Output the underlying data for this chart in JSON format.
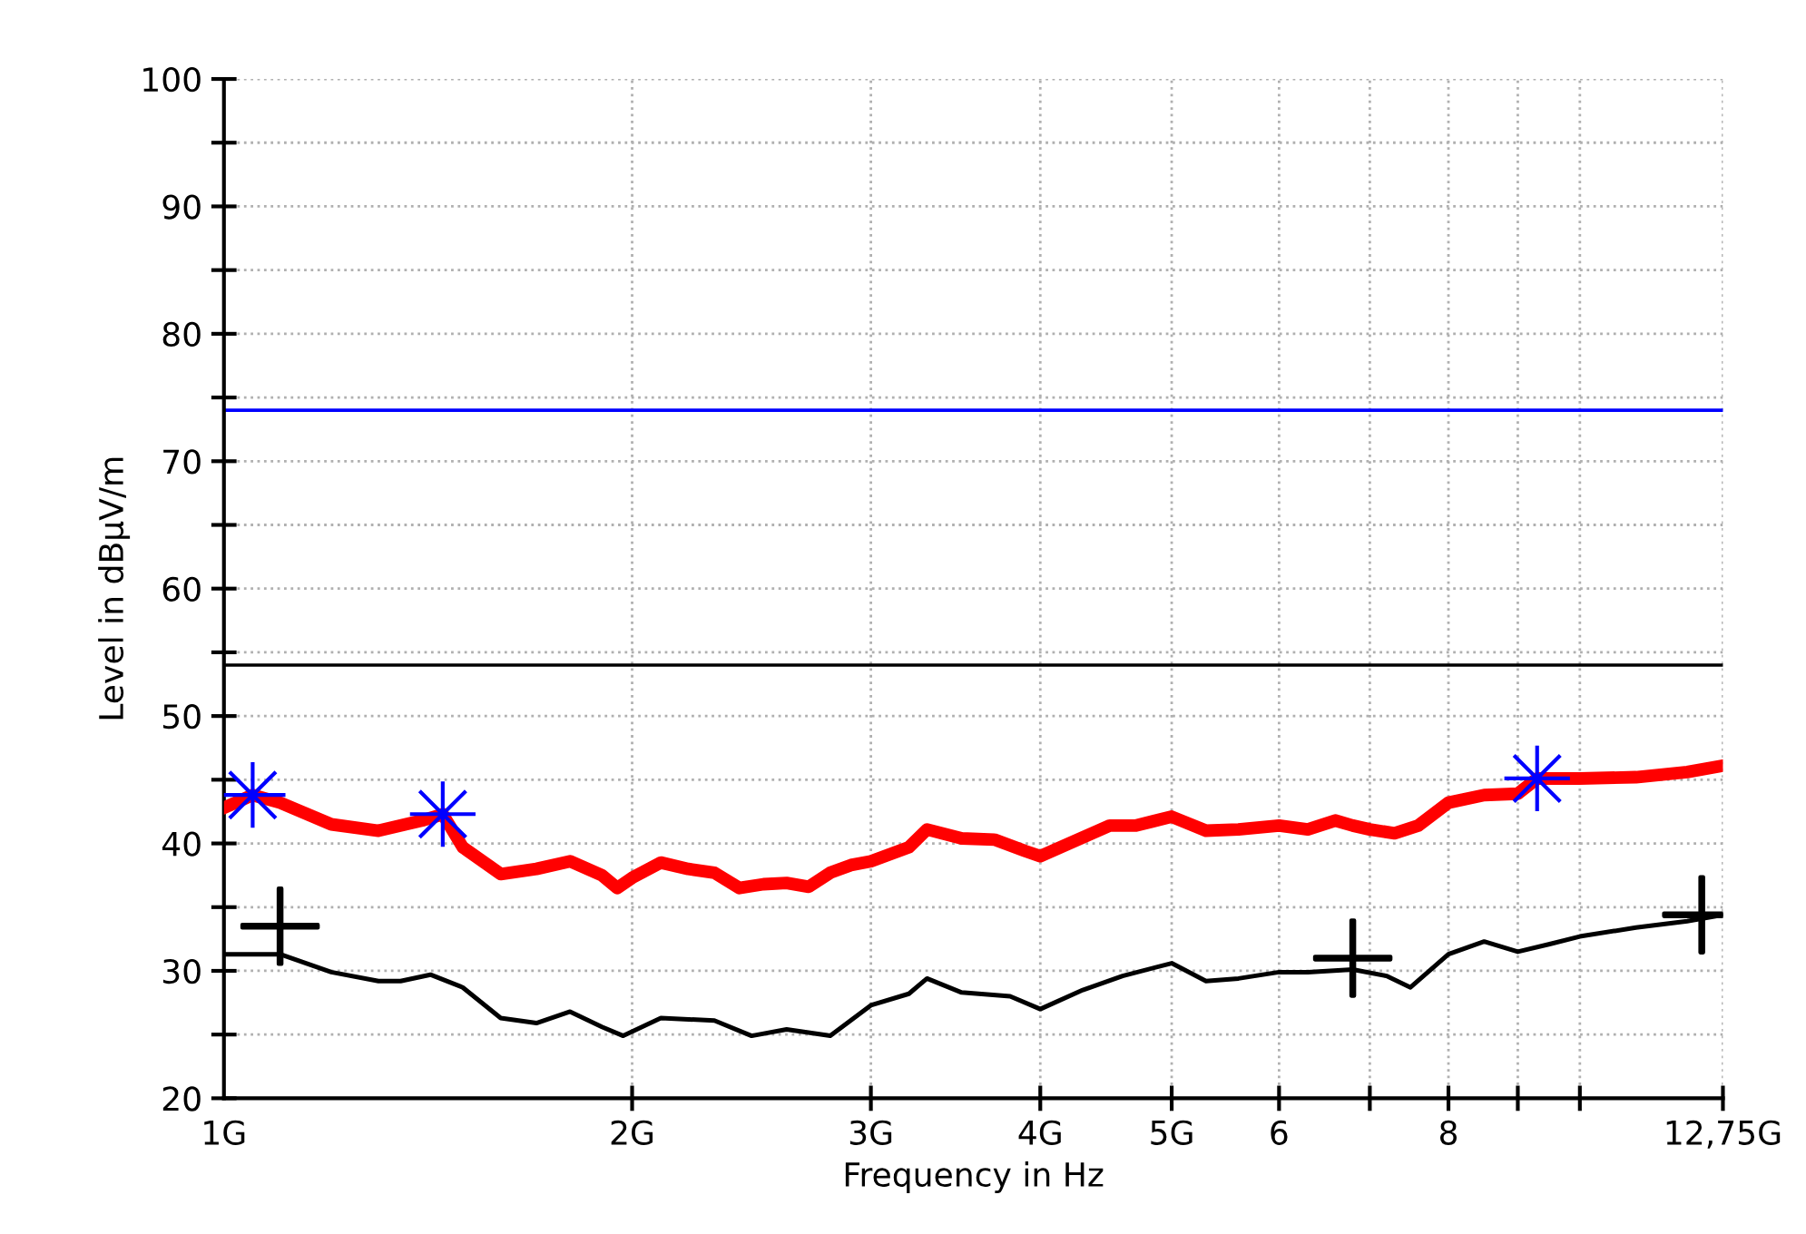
{
  "chart_data": {
    "type": "line",
    "xlabel": "Frequency in Hz",
    "ylabel": "Level in dBµV/m",
    "log": "x",
    "grid": true,
    "line_style": "solid",
    "xlim": [
      1,
      12.75
    ],
    "xticks": [
      {
        "value": 1,
        "label": "1G"
      },
      {
        "value": 2,
        "label": "2G"
      },
      {
        "value": 3,
        "label": "3G"
      },
      {
        "value": 4,
        "label": "4G"
      },
      {
        "value": 5,
        "label": "5G"
      },
      6,
      {
        "value": 7,
        "label": null
      },
      8,
      {
        "value": 9,
        "label": null
      },
      {
        "value": 10,
        "label": null
      },
      {
        "value": 12.75,
        "label": "12,75G"
      }
    ],
    "ylim": [
      20,
      100
    ],
    "yticks": [
      20,
      {
        "value": 25,
        "label": null
      },
      30,
      {
        "value": 35,
        "label": null
      },
      40,
      {
        "value": 45,
        "label": null
      },
      50,
      {
        "value": 55,
        "label": null
      },
      60,
      {
        "value": 65,
        "label": null
      },
      70,
      {
        "value": 75,
        "label": null
      },
      80,
      {
        "value": 85,
        "label": null
      },
      90,
      {
        "value": 95,
        "label": null
      },
      100
    ],
    "ref_lines": [
      {
        "axis": "y",
        "value": 74,
        "label": null,
        "color": "#0000ff",
        "line_style": "solid"
      },
      {
        "axis": "y",
        "value": 54,
        "label": null,
        "color": "#000000",
        "line_style": "solid"
      }
    ],
    "series": [
      {
        "color": "#ff0000",
        "marker": "none",
        "x": [
          1,
          1.05,
          1.1,
          1.2,
          1.3,
          1.4,
          1.45,
          1.5,
          1.6,
          1.7,
          1.8,
          1.9,
          1.95,
          2,
          2.1,
          2.2,
          2.3,
          2.4,
          2.5,
          2.6,
          2.7,
          2.8,
          2.9,
          3,
          3.2,
          3.3,
          3.5,
          3.7,
          3.9,
          4,
          4.2,
          4.5,
          4.7,
          5,
          5.3,
          5.6,
          6,
          6.3,
          6.6,
          6.8,
          7,
          7.3,
          7.6,
          8,
          8.5,
          9,
          9.3,
          10,
          11,
          12,
          12.75
        ],
        "values": [
          42.8,
          43.8,
          43.2,
          41.5,
          41.0,
          41.8,
          42.3,
          39.7,
          37.6,
          38.0,
          38.6,
          37.5,
          36.5,
          37.3,
          38.5,
          38.0,
          37.7,
          36.5,
          36.8,
          36.9,
          36.6,
          37.7,
          38.3,
          38.6,
          39.7,
          41.1,
          40.4,
          40.3,
          39.4,
          39.0,
          40.0,
          41.4,
          41.4,
          42.1,
          41.0,
          41.1,
          41.4,
          41.1,
          41.8,
          41.4,
          41.1,
          40.8,
          41.4,
          43.2,
          43.8,
          43.9,
          45.1,
          45.1,
          45.2,
          45.6,
          46.1
        ]
      },
      {
        "color": "#000000",
        "marker": "none",
        "x": [
          1,
          1.1,
          1.2,
          1.3,
          1.35,
          1.42,
          1.5,
          1.6,
          1.7,
          1.8,
          1.9,
          1.97,
          2.1,
          2.3,
          2.45,
          2.6,
          2.8,
          3,
          3.2,
          3.3,
          3.5,
          3.8,
          4,
          4.3,
          4.6,
          5,
          5.3,
          5.6,
          6,
          6.3,
          6.8,
          7.2,
          7.5,
          8,
          8.5,
          9,
          9.5,
          10,
          11,
          12,
          12.75
        ],
        "values": [
          31.3,
          31.3,
          29.9,
          29.2,
          29.2,
          29.7,
          28.7,
          26.3,
          25.9,
          26.8,
          25.6,
          24.9,
          26.3,
          26.1,
          24.9,
          25.4,
          24.9,
          27.3,
          28.2,
          29.4,
          28.3,
          28.0,
          27.0,
          28.5,
          29.6,
          30.6,
          29.2,
          29.4,
          29.9,
          29.9,
          30.1,
          29.6,
          28.7,
          31.3,
          32.3,
          31.5,
          32.1,
          32.7,
          33.4,
          33.9,
          34.4
        ]
      },
      {
        "type": "scatter",
        "color": "#0000ff",
        "marker": "star",
        "x": [
          1.05,
          1.45,
          9.3
        ],
        "values": [
          43.8,
          42.3,
          45.1
        ]
      },
      {
        "type": "scatter",
        "color": "#000000",
        "marker": "cross",
        "x": [
          1.1,
          6.8,
          12.3
        ],
        "values": [
          33.5,
          31.0,
          34.4
        ]
      }
    ]
  }
}
